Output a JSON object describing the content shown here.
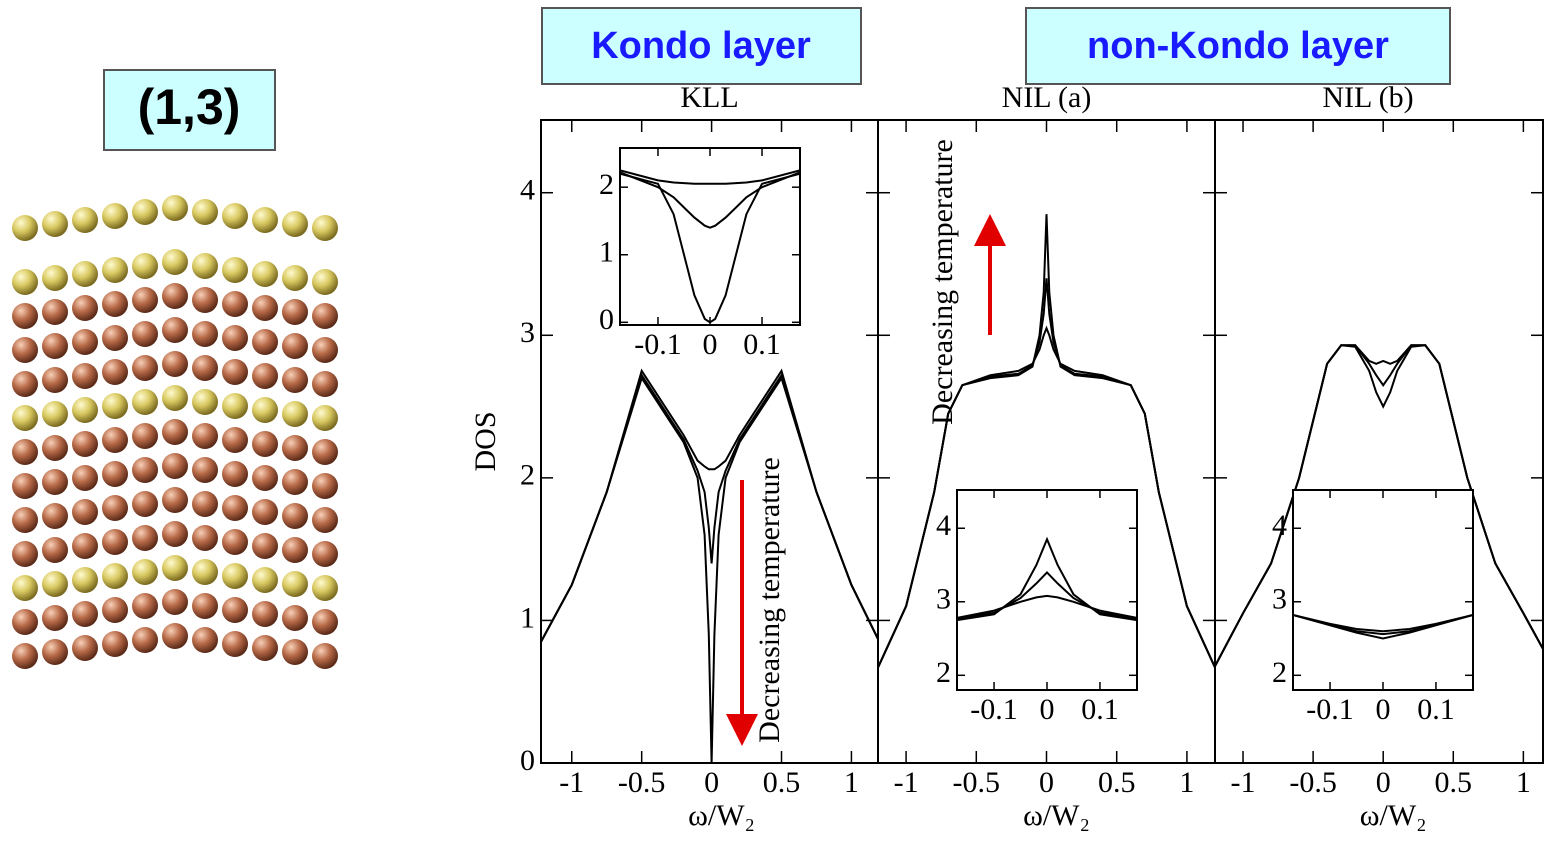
{
  "labels": {
    "structure": "(1,3)",
    "left_header": "Kondo layer",
    "right_header": "non-Kondo layer"
  },
  "chart_data": [
    {
      "type": "line",
      "title": "KLL",
      "xlabel": "ω/W₂",
      "ylabel": "DOS",
      "annotation": "Decreasing temperature",
      "xlim": [
        -1.22,
        1.19
      ],
      "ylim": [
        0,
        4.51
      ],
      "xticks": [
        -1,
        -0.5,
        0,
        0.5,
        1
      ],
      "yticks": [
        0,
        1,
        2,
        3,
        4
      ],
      "ytick_labels": true,
      "x": [
        -1.22,
        -1,
        -0.75,
        -0.5,
        -0.4,
        -0.3,
        -0.2,
        -0.1,
        -0.05,
        -0.02,
        0,
        0.02,
        0.05,
        0.1,
        0.2,
        0.3,
        0.4,
        0.5,
        0.75,
        1,
        1.19
      ],
      "series": [
        {
          "color": "#000000",
          "values": [
            0.85,
            1.25,
            1.9,
            2.75,
            2.6,
            2.45,
            2.3,
            2.12,
            2.08,
            2.06,
            2.06,
            2.06,
            2.08,
            2.12,
            2.3,
            2.45,
            2.6,
            2.75,
            1.9,
            1.25,
            0.87
          ]
        },
        {
          "color": "#000000",
          "values": [
            0.85,
            1.25,
            1.9,
            2.72,
            2.57,
            2.42,
            2.27,
            2.05,
            1.9,
            1.65,
            1.4,
            1.65,
            1.9,
            2.05,
            2.27,
            2.42,
            2.57,
            2.72,
            1.9,
            1.25,
            0.87
          ]
        },
        {
          "color": "#000000",
          "values": [
            0.85,
            1.25,
            1.9,
            2.7,
            2.55,
            2.4,
            2.25,
            2.0,
            1.6,
            0.9,
            0,
            0.9,
            1.6,
            2.0,
            2.25,
            2.4,
            2.55,
            2.7,
            1.9,
            1.25,
            0.87
          ]
        }
      ]
    },
    {
      "type": "line",
      "title": "NIL (a)",
      "xlabel": "ω/W₂",
      "annotation": "Decreasing temperature",
      "xlim": [
        -1.2,
        1.2
      ],
      "ylim": [
        0,
        4.51
      ],
      "xticks": [
        -1,
        -0.5,
        0,
        0.5,
        1
      ],
      "yticks": [
        0,
        1,
        2,
        3,
        4
      ],
      "ytick_labels": false,
      "x": [
        -1.2,
        -1,
        -0.8,
        -0.7,
        -0.6,
        -0.4,
        -0.2,
        -0.1,
        -0.05,
        -0.02,
        0,
        0.02,
        0.05,
        0.1,
        0.2,
        0.4,
        0.6,
        0.7,
        0.8,
        1,
        1.2
      ],
      "series": [
        {
          "color": "#000000",
          "values": [
            0.67,
            1.1,
            1.9,
            2.45,
            2.65,
            2.72,
            2.75,
            2.8,
            2.9,
            3.0,
            3.05,
            3.0,
            2.9,
            2.8,
            2.75,
            2.72,
            2.65,
            2.45,
            1.9,
            1.1,
            0.67
          ]
        },
        {
          "color": "#000000",
          "values": [
            0.67,
            1.1,
            1.9,
            2.45,
            2.65,
            2.71,
            2.73,
            2.79,
            2.95,
            3.15,
            3.4,
            3.15,
            2.95,
            2.79,
            2.73,
            2.71,
            2.65,
            2.45,
            1.9,
            1.1,
            0.67
          ]
        },
        {
          "color": "#000000",
          "values": [
            0.67,
            1.1,
            1.9,
            2.45,
            2.65,
            2.7,
            2.72,
            2.78,
            3.0,
            3.3,
            3.85,
            3.3,
            3.0,
            2.78,
            2.72,
            2.7,
            2.65,
            2.45,
            1.9,
            1.1,
            0.67
          ]
        }
      ]
    },
    {
      "type": "line",
      "title": "NIL (b)",
      "xlabel": "ω/W₂",
      "xlim": [
        -1.2,
        1.14
      ],
      "ylim": [
        0,
        4.51
      ],
      "xticks": [
        -1,
        -0.5,
        0,
        0.5,
        1
      ],
      "yticks": [
        0,
        1,
        2,
        3,
        4
      ],
      "ytick_labels": false,
      "x": [
        -1.2,
        -1,
        -0.8,
        -0.6,
        -0.4,
        -0.3,
        -0.2,
        -0.1,
        -0.05,
        0,
        0.05,
        0.1,
        0.2,
        0.3,
        0.4,
        0.6,
        0.8,
        1,
        1.14
      ],
      "series": [
        {
          "color": "#000000",
          "values": [
            0.68,
            1.05,
            1.4,
            2.0,
            2.8,
            2.93,
            2.93,
            2.82,
            2.8,
            2.82,
            2.8,
            2.82,
            2.93,
            2.93,
            2.8,
            2.0,
            1.4,
            1.05,
            0.8
          ]
        },
        {
          "color": "#000000",
          "values": [
            0.68,
            1.05,
            1.4,
            2.0,
            2.8,
            2.93,
            2.93,
            2.8,
            2.72,
            2.65,
            2.72,
            2.8,
            2.93,
            2.93,
            2.8,
            2.0,
            1.4,
            1.05,
            0.8
          ]
        },
        {
          "color": "#000000",
          "values": [
            0.68,
            1.05,
            1.4,
            2.0,
            2.8,
            2.93,
            2.92,
            2.75,
            2.6,
            2.5,
            2.6,
            2.75,
            2.92,
            2.93,
            2.8,
            2.0,
            1.4,
            1.05,
            0.8
          ]
        }
      ]
    },
    {
      "type": "line",
      "xlim": [
        -0.173,
        0.173
      ],
      "ylim": [
        -0.04,
        2.58
      ],
      "xticks": [
        -0.1,
        0,
        0.1
      ],
      "yticks": [
        0,
        1,
        2
      ],
      "ytick_labels": true,
      "x": [
        -0.173,
        -0.1,
        -0.07,
        -0.05,
        -0.03,
        -0.01,
        0,
        0.01,
        0.03,
        0.05,
        0.07,
        0.1,
        0.173
      ],
      "series": [
        {
          "color": "#000000",
          "values": [
            2.25,
            2.1,
            2.07,
            2.06,
            2.05,
            2.05,
            2.05,
            2.05,
            2.05,
            2.06,
            2.07,
            2.1,
            2.25
          ]
        },
        {
          "color": "#000000",
          "values": [
            2.22,
            2.0,
            1.85,
            1.7,
            1.55,
            1.43,
            1.4,
            1.43,
            1.55,
            1.7,
            1.85,
            2.0,
            2.22
          ]
        },
        {
          "color": "#000000",
          "values": [
            2.2,
            2.05,
            1.6,
            1.0,
            0.4,
            0.05,
            0,
            0.05,
            0.4,
            1.0,
            1.6,
            2.05,
            2.2
          ]
        }
      ]
    },
    {
      "type": "line",
      "xlim": [
        -0.17,
        0.17
      ],
      "ylim": [
        1.8,
        4.52
      ],
      "xticks": [
        -0.1,
        0,
        0.1
      ],
      "yticks": [
        2,
        3,
        4
      ],
      "ytick_labels": true,
      "x": [
        -0.17,
        -0.1,
        -0.05,
        -0.02,
        0,
        0.02,
        0.05,
        0.1,
        0.17
      ],
      "series": [
        {
          "color": "#000000",
          "values": [
            2.78,
            2.88,
            3.0,
            3.06,
            3.08,
            3.06,
            3.0,
            2.88,
            2.78
          ]
        },
        {
          "color": "#000000",
          "values": [
            2.77,
            2.85,
            3.05,
            3.25,
            3.4,
            3.25,
            3.05,
            2.85,
            2.77
          ]
        },
        {
          "color": "#000000",
          "values": [
            2.75,
            2.83,
            3.1,
            3.5,
            3.85,
            3.5,
            3.1,
            2.83,
            2.75
          ]
        }
      ]
    },
    {
      "type": "line",
      "xlim": [
        -0.17,
        0.17
      ],
      "ylim": [
        1.8,
        4.52
      ],
      "xticks": [
        -0.1,
        0,
        0.1
      ],
      "yticks": [
        2,
        3,
        4
      ],
      "ytick_labels": true,
      "x": [
        -0.17,
        -0.1,
        -0.05,
        0,
        0.05,
        0.1,
        0.17
      ],
      "series": [
        {
          "color": "#000000",
          "values": [
            2.82,
            2.7,
            2.63,
            2.6,
            2.63,
            2.7,
            2.82
          ]
        },
        {
          "color": "#000000",
          "values": [
            2.82,
            2.69,
            2.6,
            2.56,
            2.6,
            2.69,
            2.82
          ]
        },
        {
          "color": "#000000",
          "values": [
            2.82,
            2.68,
            2.58,
            2.5,
            2.58,
            2.68,
            2.82
          ]
        }
      ]
    }
  ]
}
